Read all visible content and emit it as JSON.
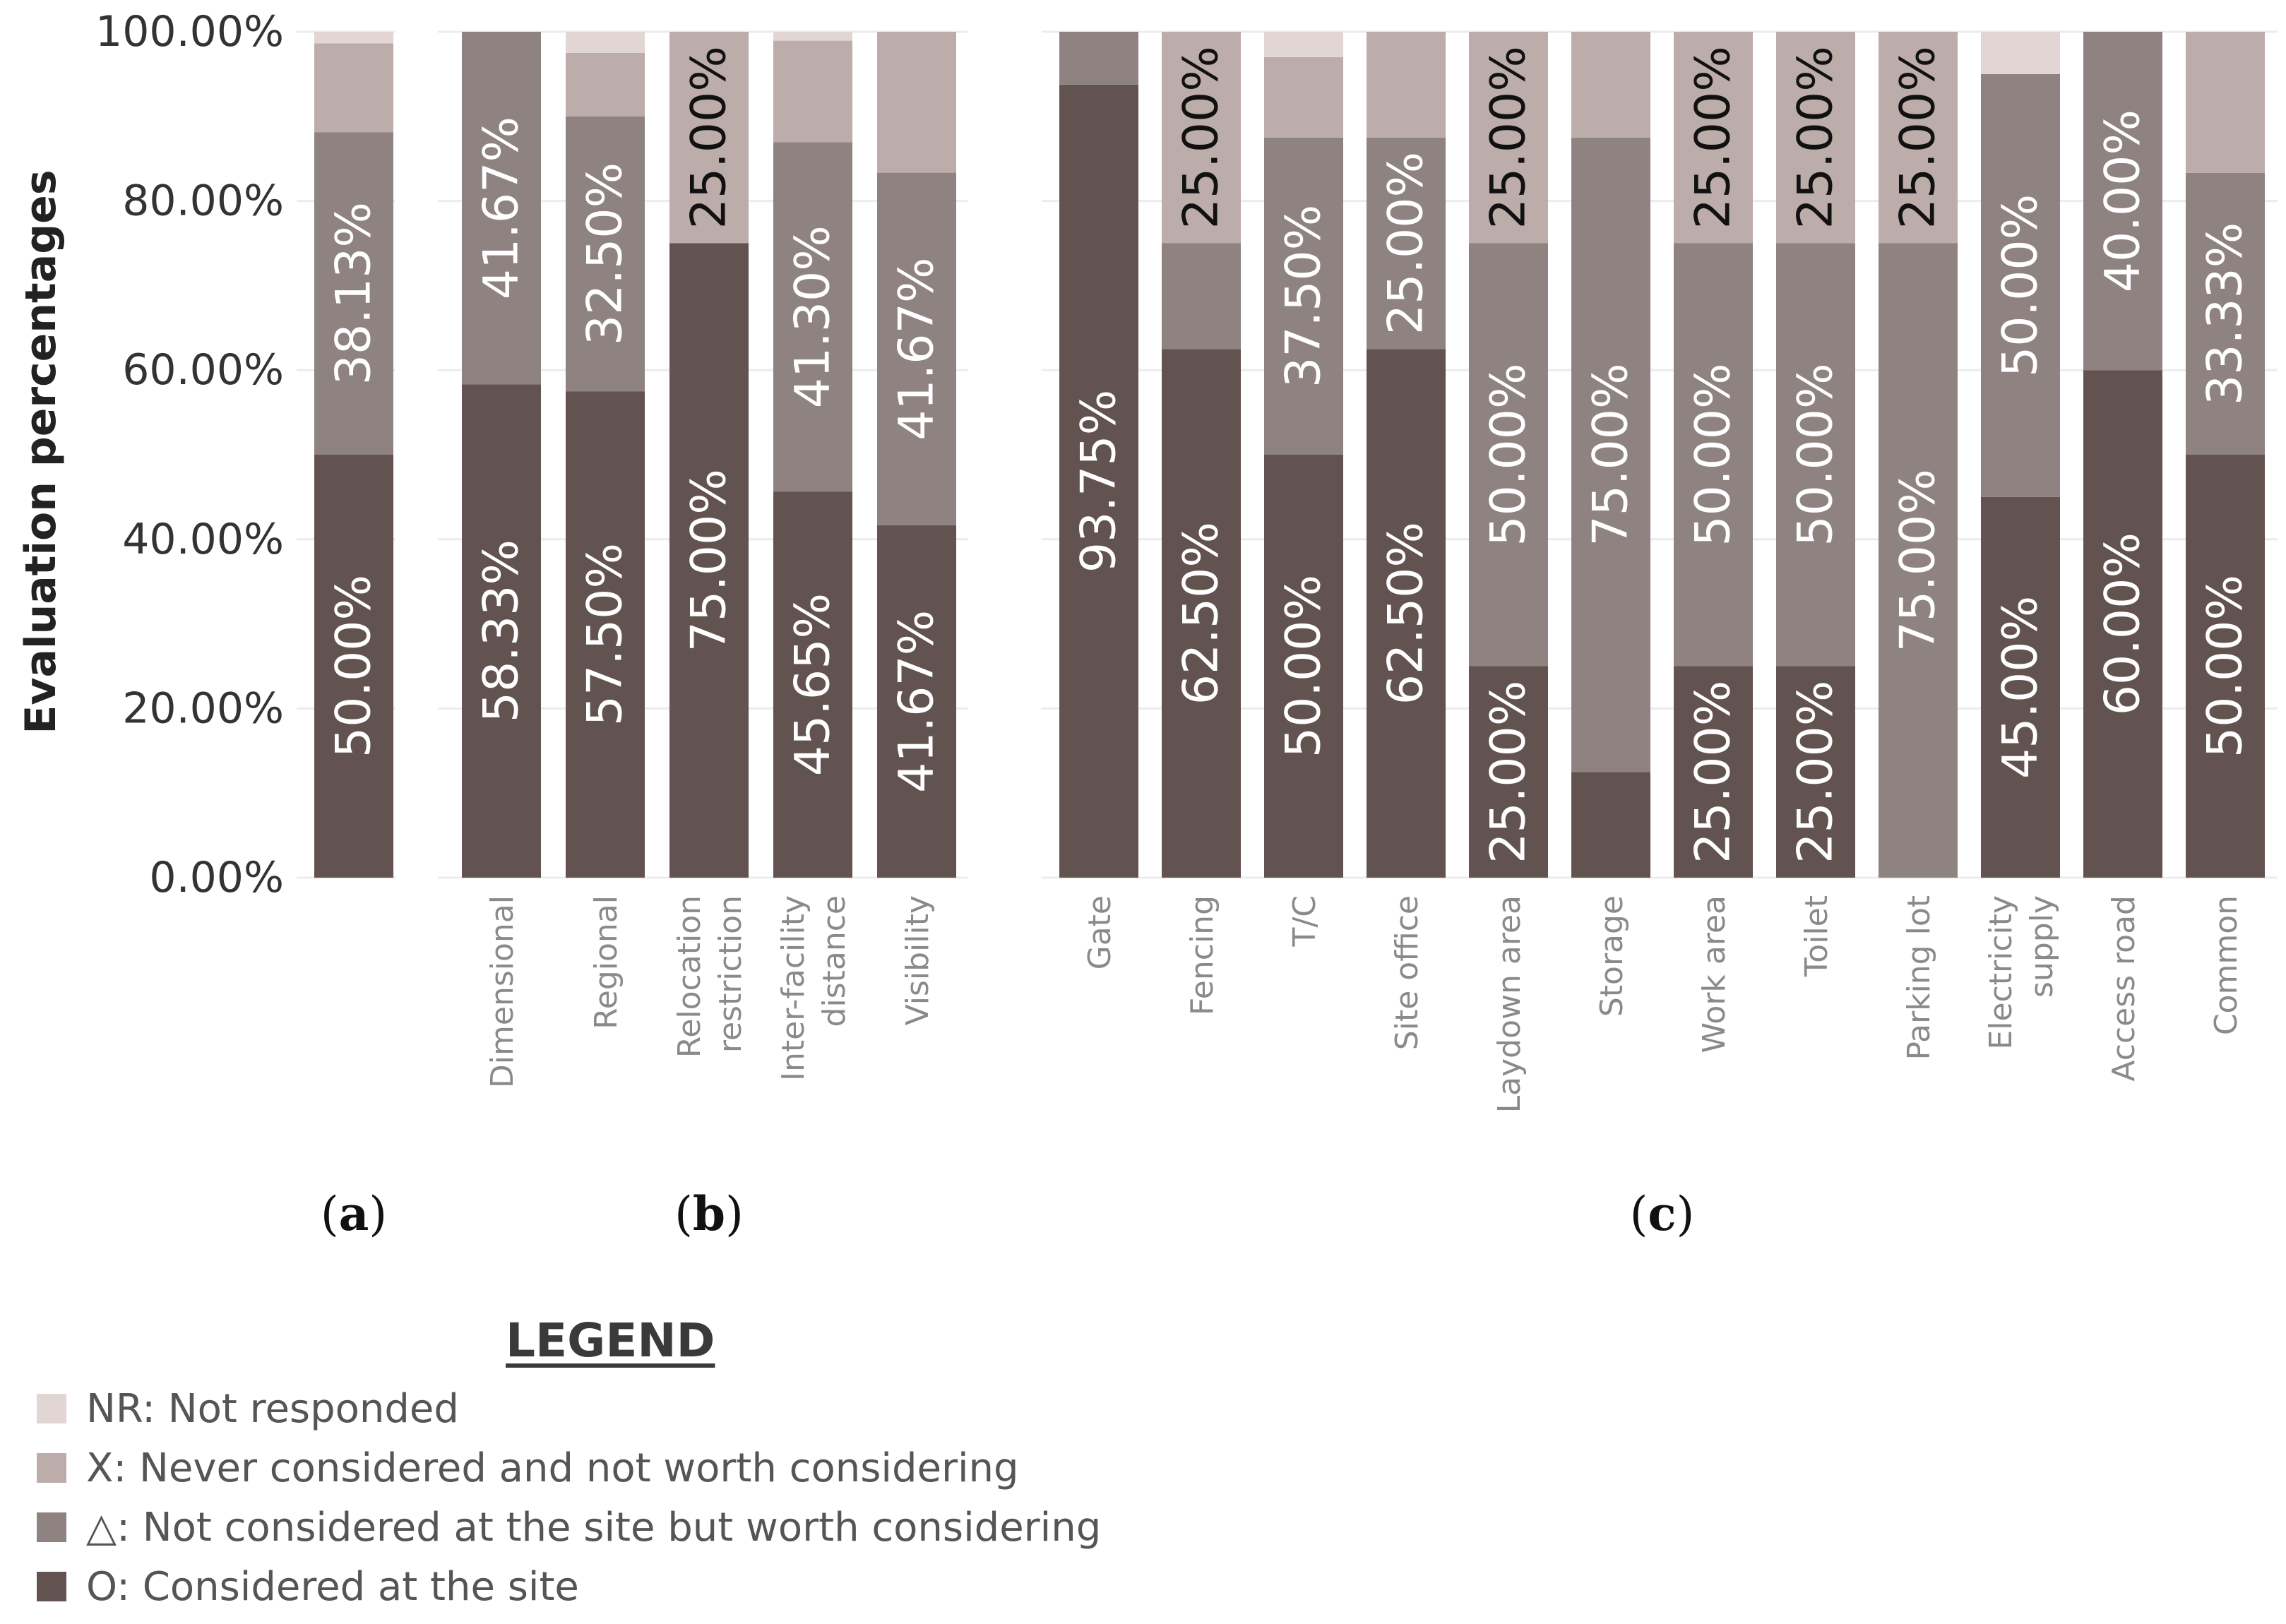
{
  "colors": {
    "NR": "#e2d6d5",
    "X": "#bcadab",
    "D": "#8e8380",
    "O": "#625350"
  },
  "chart_data": {
    "type": "bar",
    "stacked": true,
    "ylabel": "Evaluation percentages",
    "ylim": [
      0,
      100
    ],
    "yticks": [
      "0.00%",
      "20.00%",
      "40.00%",
      "60.00%",
      "80.00%",
      "100.00%"
    ],
    "grid": true,
    "legend_position": "bottom-left",
    "series_order": [
      "O",
      "D",
      "X",
      "NR"
    ],
    "panels": [
      {
        "label": "a",
        "bars": [
          {
            "category": "",
            "O": 50.0,
            "D": 38.13,
            "X": 10.5,
            "NR": 1.37,
            "labels": {
              "O": "50.00%",
              "D": "38.13%"
            }
          }
        ]
      },
      {
        "label": "b",
        "bars": [
          {
            "category": "Dimensional",
            "O": 58.33,
            "D": 41.67,
            "X": 0,
            "NR": 0,
            "labels": {
              "O": "58.33%",
              "D": "41.67%"
            }
          },
          {
            "category": "Regional",
            "O": 57.5,
            "D": 32.5,
            "X": 7.5,
            "NR": 2.5,
            "labels": {
              "O": "57.50%",
              "D": "32.50%"
            }
          },
          {
            "category": "Relocation restriction",
            "O": 75.0,
            "D": 0,
            "X": 25.0,
            "NR": 0,
            "labels": {
              "O": "75.00%",
              "X": "25.00%"
            }
          },
          {
            "category": "Inter-facility distance",
            "O": 45.65,
            "D": 41.3,
            "X": 12.0,
            "NR": 1.05,
            "labels": {
              "O": "45.65%",
              "D": "41.30%"
            }
          },
          {
            "category": "Visibility",
            "O": 41.67,
            "D": 41.67,
            "X": 16.66,
            "NR": 0,
            "labels": {
              "O": "41.67%",
              "D": "41.67%"
            }
          }
        ]
      },
      {
        "label": "c",
        "bars": [
          {
            "category": "Gate",
            "O": 93.75,
            "D": 6.25,
            "X": 0,
            "NR": 0,
            "labels": {
              "O": "93.75%"
            }
          },
          {
            "category": "Fencing",
            "O": 62.5,
            "D": 12.5,
            "X": 25.0,
            "NR": 0,
            "labels": {
              "O": "62.50%",
              "X": "25.00%"
            }
          },
          {
            "category": "T/C",
            "O": 50.0,
            "D": 37.5,
            "X": 9.5,
            "NR": 3.0,
            "labels": {
              "O": "50.00%",
              "D": "37.50%"
            }
          },
          {
            "category": "Site office",
            "O": 62.5,
            "D": 25.0,
            "X": 12.5,
            "NR": 0,
            "labels": {
              "O": "62.50%",
              "D": "25.00%"
            }
          },
          {
            "category": "Laydown area",
            "O": 25.0,
            "D": 50.0,
            "X": 25.0,
            "NR": 0,
            "labels": {
              "O": "25.00%",
              "D": "50.00%",
              "X": "25.00%"
            }
          },
          {
            "category": "Storage",
            "O": 12.5,
            "D": 75.0,
            "X": 12.5,
            "NR": 0,
            "labels": {
              "D": "75.00%"
            }
          },
          {
            "category": "Work area",
            "O": 25.0,
            "D": 50.0,
            "X": 25.0,
            "NR": 0,
            "labels": {
              "O": "25.00%",
              "D": "50.00%",
              "X": "25.00%"
            }
          },
          {
            "category": "Toilet",
            "O": 25.0,
            "D": 50.0,
            "X": 25.0,
            "NR": 0,
            "labels": {
              "O": "25.00%",
              "D": "50.00%",
              "X": "25.00%"
            }
          },
          {
            "category": "Parking lot",
            "O": 0,
            "D": 75.0,
            "X": 25.0,
            "NR": 0,
            "labels": {
              "D": "75.00%",
              "X": "25.00%"
            }
          },
          {
            "category": "Electricity supply",
            "O": 45.0,
            "D": 50.0,
            "X": 0,
            "NR": 5.0,
            "labels": {
              "O": "45.00%",
              "D": "50.00%"
            }
          },
          {
            "category": "Access road",
            "O": 60.0,
            "D": 40.0,
            "X": 0,
            "NR": 0,
            "labels": {
              "O": "60.00%",
              "D": "40.00%"
            }
          },
          {
            "category": "Common",
            "O": 50.0,
            "D": 33.33,
            "X": 16.67,
            "NR": 0,
            "labels": {
              "O": "50.00%",
              "D": "33.33%"
            }
          }
        ]
      }
    ]
  },
  "legend": {
    "title": "LEGEND",
    "items": [
      {
        "key": "NR",
        "label": "NR: Not responded"
      },
      {
        "key": "X",
        "label": "X: Never considered and not worth considering"
      },
      {
        "key": "D",
        "label": "△: Not considered at the site but worth considering"
      },
      {
        "key": "O",
        "label": "O: Considered at the site"
      }
    ]
  }
}
